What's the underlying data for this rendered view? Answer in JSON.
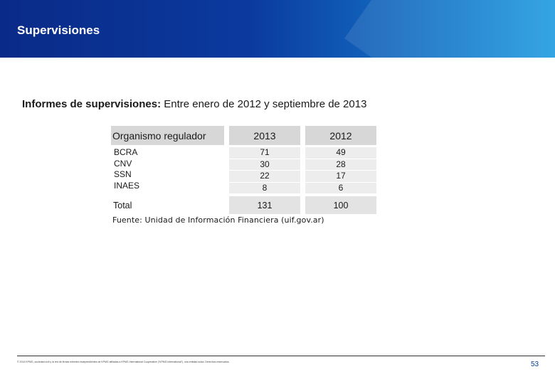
{
  "header": {
    "title": "Supervisiones",
    "colors": {
      "banner_start": "#0a2a88",
      "banner_end": "#1f9be0"
    }
  },
  "subtitle": {
    "bold": "Informes de supervisiones:",
    "rest": " Entre enero de 2012 y septiembre de 2013"
  },
  "table": {
    "headers": [
      "Organismo regulador",
      "2013",
      "2012"
    ],
    "rows": [
      {
        "org": "BCRA",
        "y2013": "71",
        "y2012": "49"
      },
      {
        "org": "CNV",
        "y2013": "30",
        "y2012": "28"
      },
      {
        "org": "SSN",
        "y2013": "22",
        "y2012": "17"
      },
      {
        "org": "INAES",
        "y2013": "8",
        "y2012": "6"
      }
    ],
    "total": {
      "label": "Total",
      "y2013": "131",
      "y2012": "100"
    }
  },
  "source": "Fuente: Unidad de Información Financiera (uif.gov.ar)",
  "footer": {
    "text": "© 2014 KPMG, sociedad civil y la red de firmas miembro independientes de KPMG afiliadas a KPMG International Cooperative (\"KPMG International\"), una entidad suiza. Derechos reservados.",
    "page": "53"
  }
}
